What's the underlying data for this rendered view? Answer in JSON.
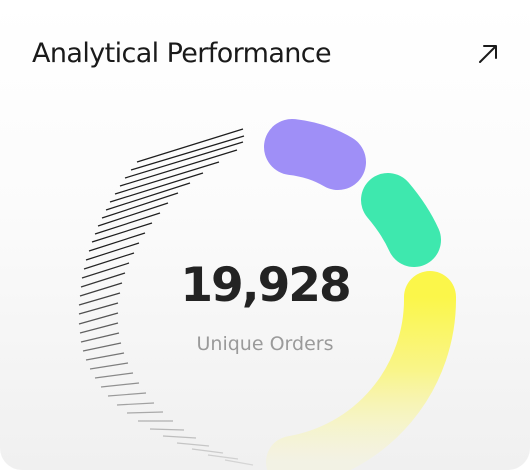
{
  "card": {
    "title": "Analytical Performance",
    "expand_icon": "arrow-up-right-icon"
  },
  "summary": {
    "value": "19,928",
    "label": "Unique Orders"
  },
  "colors": {
    "purple": "#9f8ff7",
    "green": "#3ee8ae",
    "yellow": "#fbf64a",
    "hatch": "#1e1e1e",
    "title": "#1a1a1a",
    "value": "#232323",
    "label": "#9a9a9a"
  }
}
